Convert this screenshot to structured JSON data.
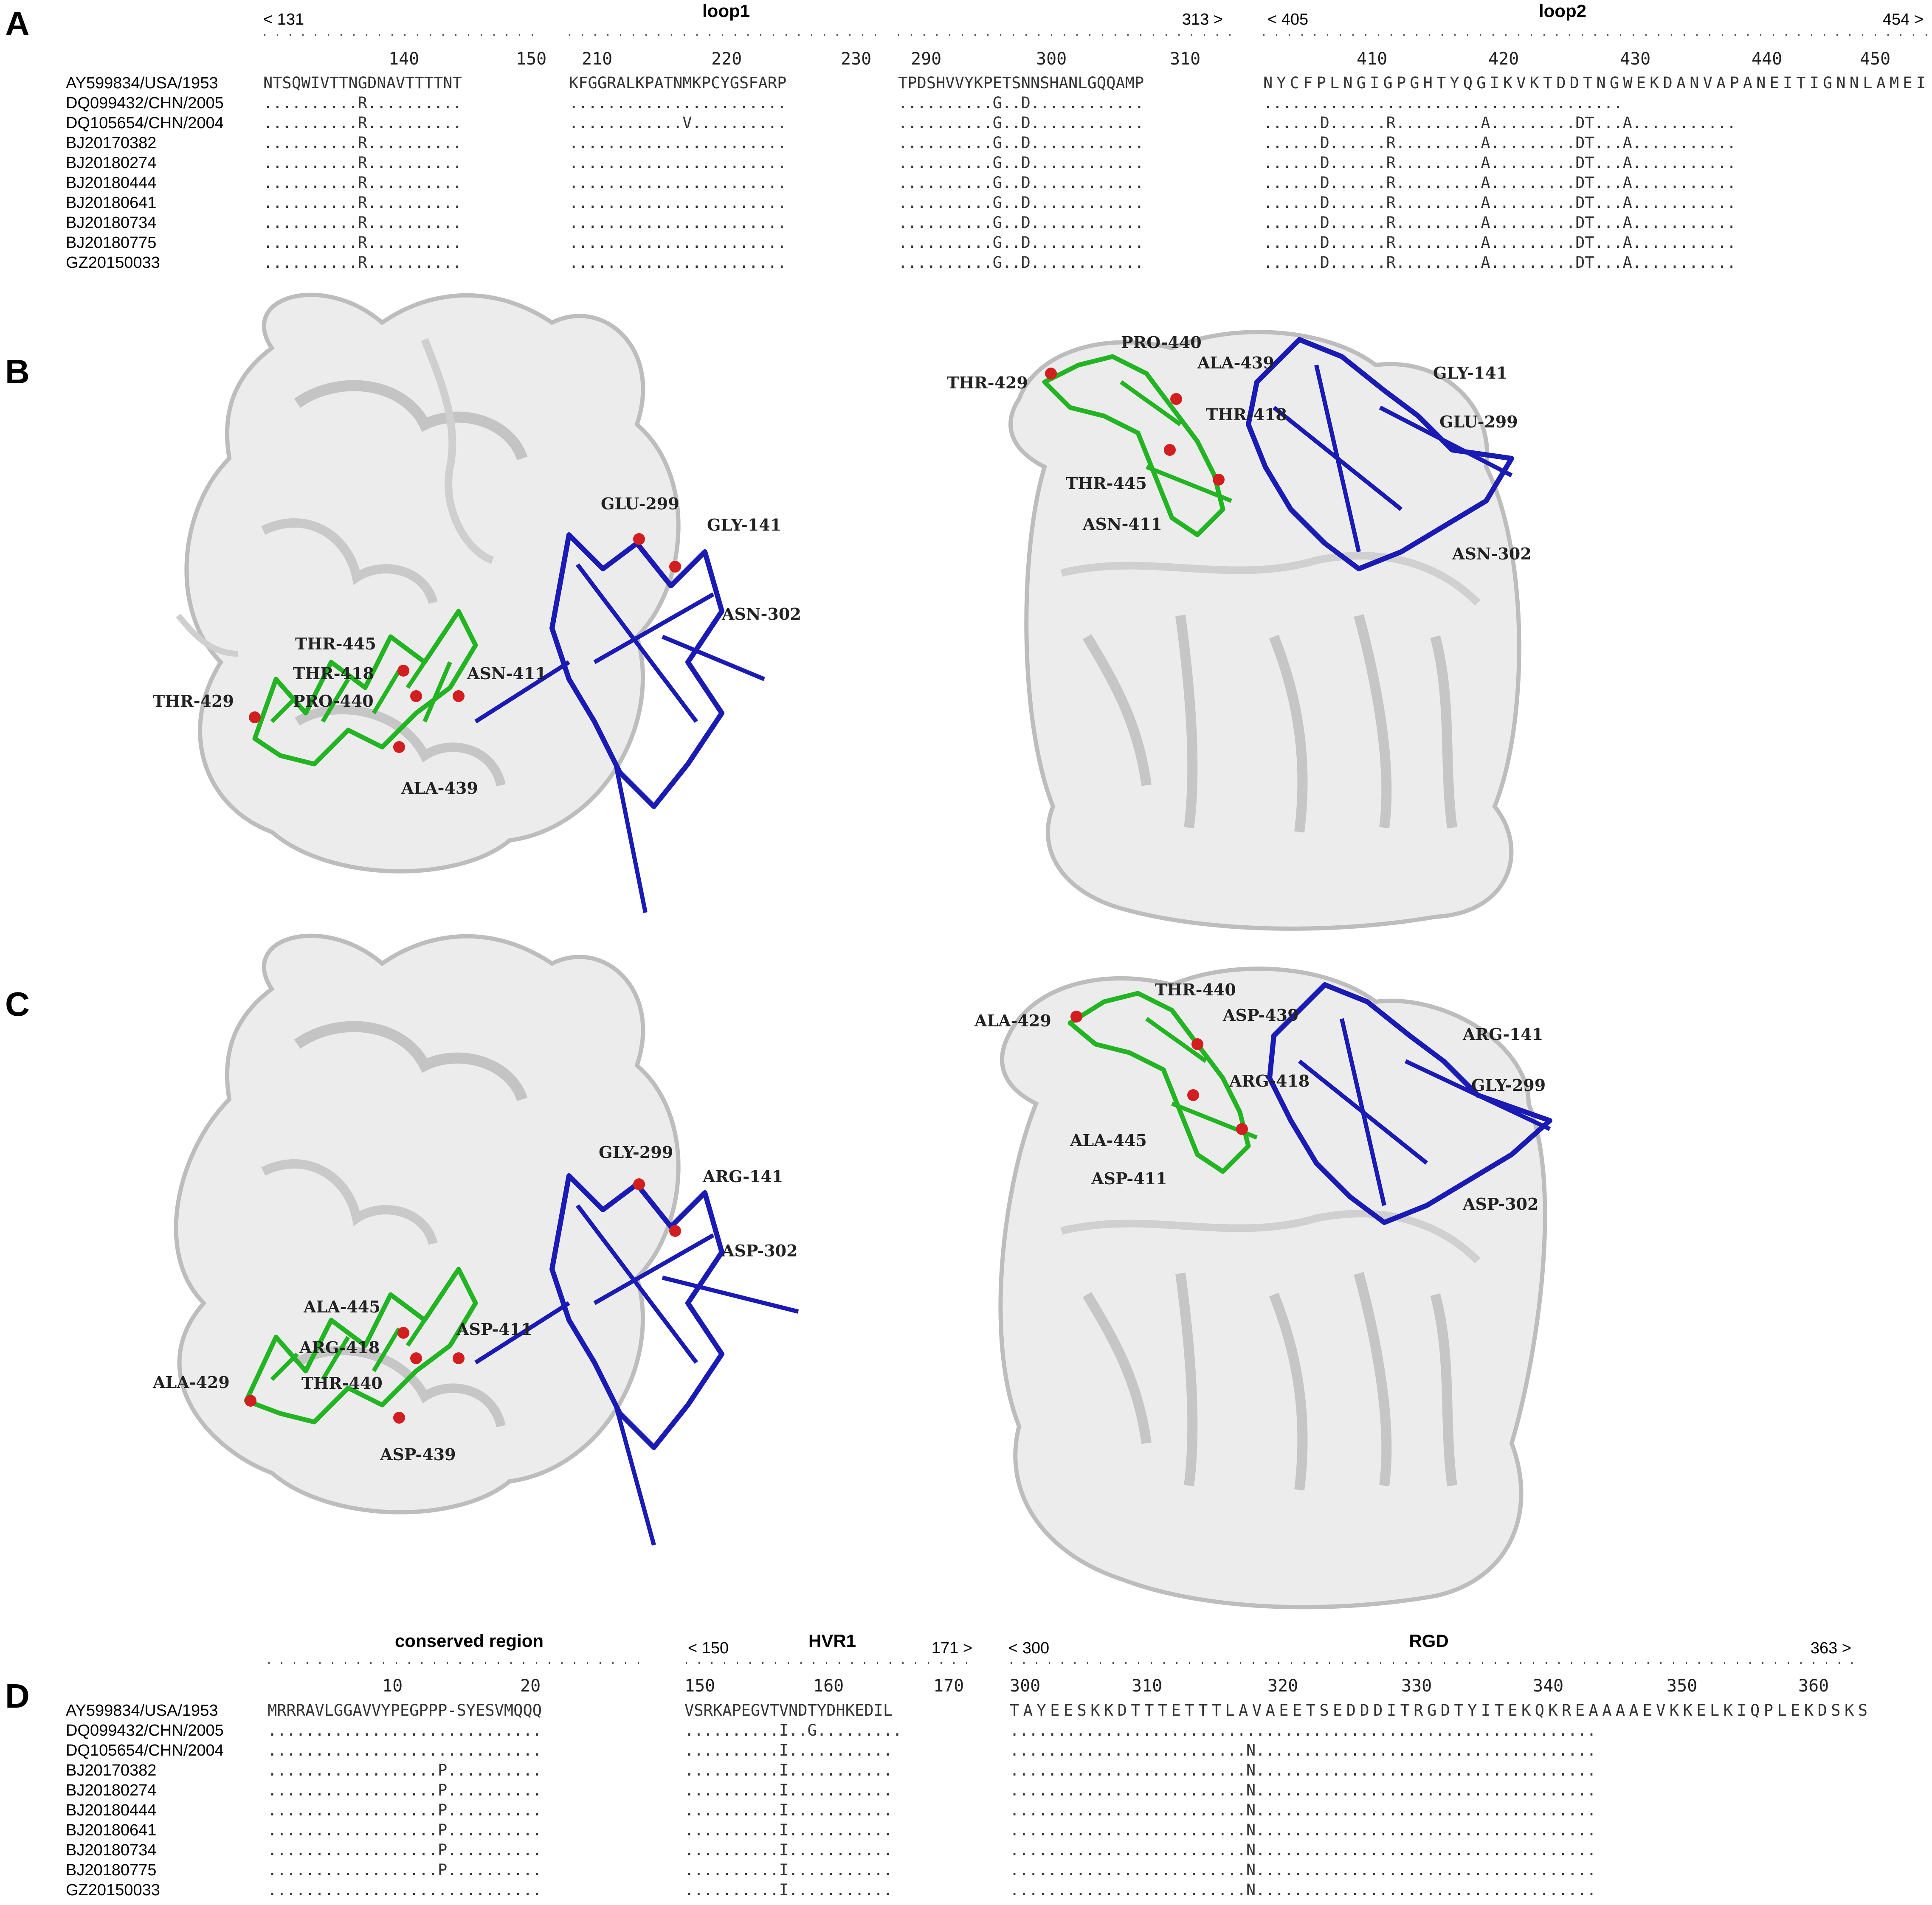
{
  "panel_letters": [
    "A",
    "B",
    "C",
    "D"
  ],
  "panelA": {
    "names": [
      "AY599834/USA/1953",
      "DQ099432/CHN/2005",
      "DQ105654/CHN/2004",
      "BJ20170382",
      "BJ20180274",
      "BJ20180444",
      "BJ20180641",
      "BJ20180734",
      "BJ20180775",
      "GZ20150033"
    ],
    "blocks": [
      {
        "title": "",
        "range_start": "< 131",
        "range_end": "",
        "ticks": [
          "140",
          "150"
        ],
        "rows": [
          "NTSQWIVTTNGDNAVTTTTNT",
          "..........R..........",
          "..........R..........",
          "..........R..........",
          "..........R..........",
          "..........R..........",
          "..........R..........",
          "..........R..........",
          "..........R..........",
          "..........R.........."
        ]
      },
      {
        "title": "loop1",
        "range_start": "",
        "range_end": "",
        "ticks": [
          "210",
          "220",
          "230"
        ],
        "rows": [
          "KFGGRALKPATNMKPCYGSFARP",
          ".......................",
          "............V..........",
          ".......................",
          ".......................",
          ".......................",
          ".......................",
          ".......................",
          ".......................",
          "......................."
        ]
      },
      {
        "title": "",
        "range_start": "",
        "range_end": "313 >",
        "ticks": [
          "290",
          "300",
          "310"
        ],
        "rows": [
          "TPDSHVVYKPETSNNSHANLGQQAMP",
          "..........G..D............",
          "..........G..D............",
          "..........G..D............",
          "..........G..D............",
          "..........G..D............",
          "..........G..D............",
          "..........G..D............",
          "..........G..D............",
          "..........G..D............"
        ]
      },
      {
        "title": "loop2",
        "range_start": "< 405",
        "range_end": "454 >",
        "ticks": [
          "410",
          "420",
          "430",
          "440",
          "450"
        ],
        "rows": [
          "NYCFPLNGIGPGHTYQGIKVKTDDTNGWEKDANVAPANEITIGNNLAMEI",
          "......................................",
          "......D......R.........A.........DT...A...........",
          "......D......R.........A.........DT...A...........",
          "......D......R.........A.........DT...A...........",
          "......D......R.........A.........DT...A...........",
          "......D......R.........A.........DT...A...........",
          "......D......R.........A.........DT...A...........",
          "......D......R.........A.........DT...A...........",
          "......D......R.........A.........DT...A..........."
        ]
      }
    ]
  },
  "panelB": {
    "left_labels": [
      "GLU-299",
      "GLY-141",
      "ASN-302",
      "THR-445",
      "THR-418",
      "ASN-411",
      "THR-429",
      "PRO-440",
      "ALA-439"
    ],
    "right_labels": [
      "PRO-440",
      "ALA-439",
      "THR-429",
      "THR-418",
      "GLY-141",
      "GLU-299",
      "THR-445",
      "ASN-411",
      "ASN-302"
    ]
  },
  "panelC": {
    "left_labels": [
      "GLY-299",
      "ARG-141",
      "ASP-302",
      "ALA-445",
      "ARG-418",
      "ASP-411",
      "ALA-429",
      "THR-440",
      "ASP-439"
    ],
    "right_labels": [
      "THR-440",
      "ASP-439",
      "ALA-429",
      "ARG-141",
      "ARG-418",
      "GLY-299",
      "ALA-445",
      "ASP-411",
      "ASP-302"
    ]
  },
  "panelD": {
    "names": [
      "AY599834/USA/1953",
      "DQ099432/CHN/2005",
      "DQ105654/CHN/2004",
      "BJ20170382",
      "BJ20180274",
      "BJ20180444",
      "BJ20180641",
      "BJ20180734",
      "BJ20180775",
      "GZ20150033"
    ],
    "blocks": [
      {
        "title": "conserved region",
        "range_start": "",
        "range_end": "",
        "ticks": [
          "10",
          "20"
        ],
        "rows": [
          "MRRRAVLGGAVVYPEGPPP-SYESVMQQQ",
          ".............................",
          ".............................",
          "..................P..........",
          "..................P..........",
          "..................P..........",
          "..................P..........",
          "..................P..........",
          "..................P..........",
          "............................."
        ]
      },
      {
        "title": "HVR1",
        "range_start": "< 150",
        "range_end": "171 >",
        "ticks": [
          "150",
          "160",
          "170"
        ],
        "rows": [
          "VSRKAPEGVTVNDTYDHKEDIL",
          "..........I..G.........",
          "..........I...........",
          "..........I...........",
          "..........I...........",
          "..........I...........",
          "..........I...........",
          "..........I...........",
          "..........I...........",
          "..........I..........."
        ]
      },
      {
        "title": "RGD",
        "range_start": "< 300",
        "range_end": "363 >",
        "ticks": [
          "300",
          "310",
          "320",
          "330",
          "340",
          "350",
          "360"
        ],
        "rows": [
          "TAYEESKKDTTTETTTLAVAEETSEDDDITRGDTYITEKQKREAAAAEVKKELKIQPLEKDSKS",
          "..............................................................",
          ".........................N....................................",
          ".........................N....................................",
          ".........................N....................................",
          ".........................N....................................",
          ".........................N....................................",
          ".........................N....................................",
          ".........................N....................................",
          ".........................N...................................."
        ]
      }
    ]
  },
  "colors": {
    "green": "#22b422",
    "blue": "#1a1ab4",
    "red": "#d21e1e",
    "ribbon": "#c8c8c8"
  }
}
